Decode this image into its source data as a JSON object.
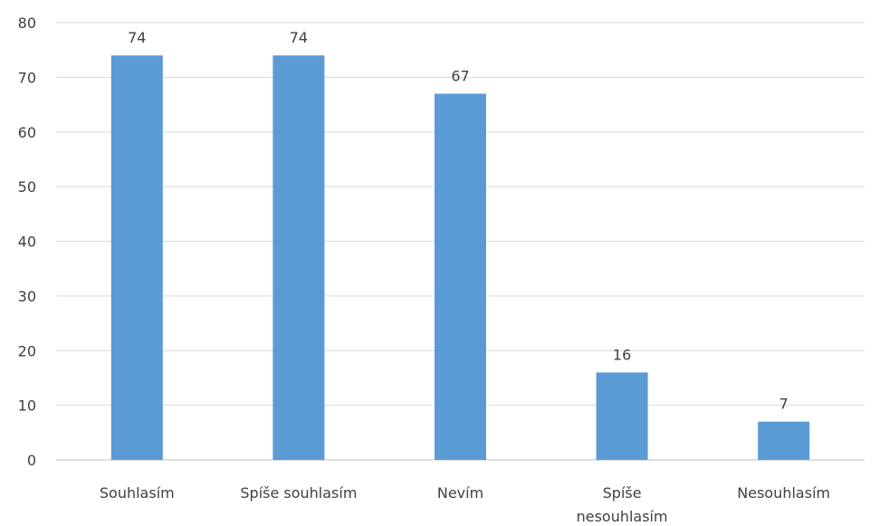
{
  "chart_data": {
    "type": "bar",
    "title": "",
    "xlabel": "",
    "ylabel": "",
    "categories": [
      "Souhlasím",
      "Spíše souhlasím",
      "Nevím",
      "Spíše nesouhlasím",
      "Nesouhlasím"
    ],
    "category_lines": [
      [
        "Souhlasím"
      ],
      [
        "Spíše souhlasím"
      ],
      [
        "Nevím"
      ],
      [
        "Spíše",
        "nesouhlasím"
      ],
      [
        "Nesouhlasím"
      ]
    ],
    "values": [
      74,
      74,
      67,
      16,
      7
    ],
    "data_labels": [
      "74",
      "74",
      "67",
      "16",
      "7"
    ],
    "ylim": [
      0,
      80
    ],
    "yticks": [
      0,
      10,
      20,
      30,
      40,
      50,
      60,
      70,
      80
    ],
    "grid": true,
    "legend": "none",
    "bar_color": "#5b9bd5"
  }
}
